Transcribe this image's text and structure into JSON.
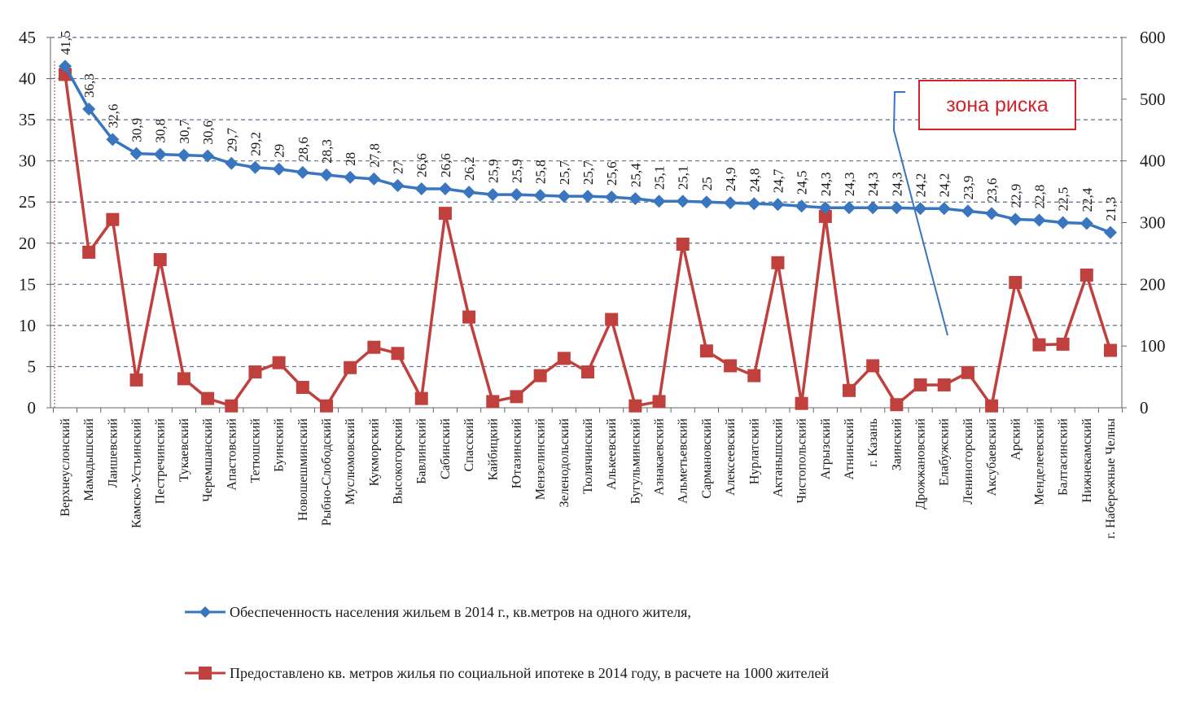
{
  "chart_data": {
    "type": "line",
    "categories": [
      "Верхнеуслонский",
      "Мамадышский",
      "Лаишевский",
      "Камско-Устьинский",
      "Пестречинский",
      "Тукаевский",
      "Черемшанский",
      "Апастовский",
      "Тетюшский",
      "Буинский",
      "Новошешминский",
      "Рыбно-Слободский",
      "Муслюмовский",
      "Кукморский",
      "Высокогорский",
      "Бавлинский",
      "Сабинский",
      "Спасский",
      "Кайбицкий",
      "Ютазинский",
      "Мензелинский",
      "Зеленодольский",
      "Тюлячинский",
      "Алькеевский",
      "Бугульминский",
      "Азнакаевский",
      "Альметьевский",
      "Сармановский",
      "Алексеевский",
      "Нурлатский",
      "Актанышский",
      "Чистопольский",
      "Агрызский",
      "Атнинский",
      "г. Казань",
      "Заинский",
      "Дрожжановский",
      "Елабужский",
      "Лениногорский",
      "Аксубаевский",
      "Арский",
      "Менделеевский",
      "Балтасинский",
      "Нижнекамский",
      "г. Набережные Челны"
    ],
    "series": [
      {
        "name": "Обеспеченность населения жильем в 2014 г., кв.метров на одного жителя,",
        "axis": "left",
        "color": "#3a75c0",
        "marker": "diamond",
        "values": [
          41.5,
          36.3,
          32.6,
          30.9,
          30.8,
          30.7,
          30.6,
          29.7,
          29.2,
          29,
          28.6,
          28.3,
          28,
          27.8,
          27,
          26.6,
          26.6,
          26.2,
          25.9,
          25.9,
          25.8,
          25.7,
          25.7,
          25.6,
          25.4,
          25.1,
          25.1,
          25,
          24.9,
          24.8,
          24.7,
          24.5,
          24.3,
          24.3,
          24.3,
          24.3,
          24.2,
          24.2,
          23.9,
          23.6,
          22.9,
          22.8,
          22.5,
          22.4,
          21.3
        ],
        "labels": [
          "41,5",
          "36,3",
          "32,6",
          "30,9",
          "30,8",
          "30,7",
          "30,6",
          "29,7",
          "29,2",
          "29",
          "28,6",
          "28,3",
          "28",
          "27,8",
          "27",
          "26,6",
          "26,6",
          "26,2",
          "25,9",
          "25,9",
          "25,8",
          "25,7",
          "25,7",
          "25,6",
          "25,4",
          "25,1",
          "25,1",
          "25",
          "24,9",
          "24,8",
          "24,7",
          "24,5",
          "24,3",
          "24,3",
          "24,3",
          "24,3",
          "24,2",
          "24,2",
          "23,9",
          "23,6",
          "22,9",
          "22,8",
          "22,5",
          "22,4",
          "21,3"
        ]
      },
      {
        "name": "Предоставлено кв. метров жилья по социальной ипотеке в 2014 году, в расчете на 1000 жителей",
        "axis": "right",
        "color": "#c0403d",
        "marker": "square",
        "values": [
          540,
          252,
          305,
          45,
          240,
          47,
          15,
          3,
          58,
          73,
          33,
          3,
          65,
          98,
          88,
          15,
          315,
          147,
          10,
          18,
          52,
          80,
          58,
          143,
          3,
          10,
          265,
          92,
          68,
          52,
          235,
          7,
          310,
          28,
          68,
          5,
          37,
          37,
          57,
          3,
          203,
          102,
          103,
          215,
          93
        ]
      }
    ],
    "y_left": {
      "min": 0,
      "max": 45,
      "ticks": [
        0,
        5,
        10,
        15,
        20,
        25,
        30,
        35,
        40,
        45
      ]
    },
    "y_right": {
      "min": 0,
      "max": 600,
      "ticks": [
        0,
        100,
        200,
        300,
        400,
        500,
        600
      ]
    },
    "grid": true,
    "legend_position": "bottom",
    "annotation": {
      "text": "зона риска",
      "color": "#d2232a"
    },
    "colors": {
      "grid": "#5a6e8a",
      "axis": "#666666",
      "text": "#1a1a1a"
    }
  }
}
